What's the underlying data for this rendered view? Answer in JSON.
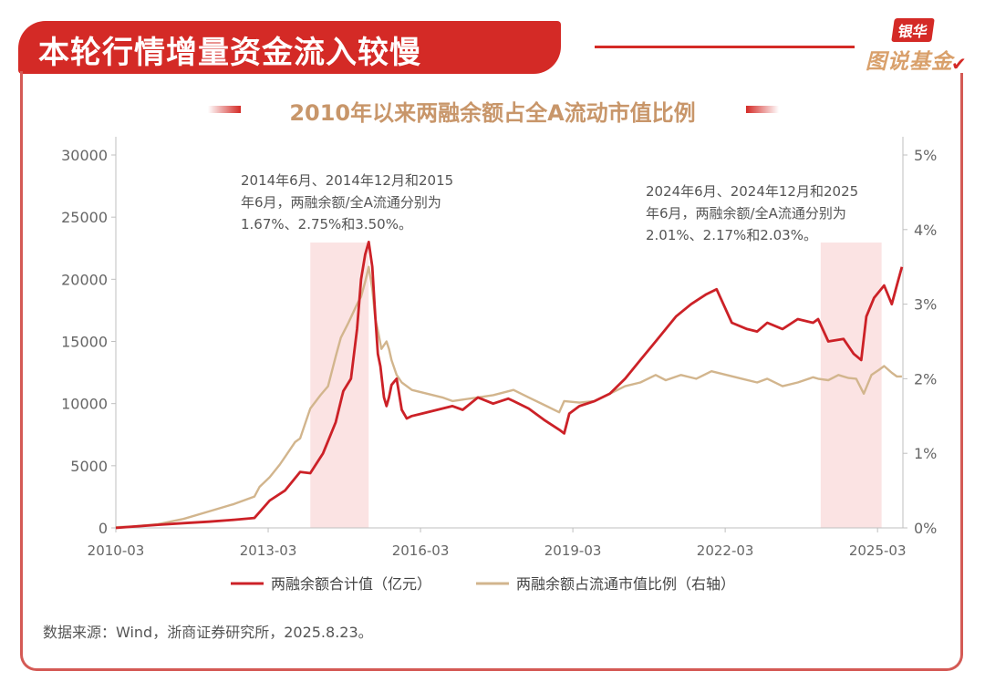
{
  "header": {
    "title": "本轮行情增量资金流入较慢",
    "brand_top": "银华",
    "brand_bottom": "图说基金",
    "brand_check": "✔"
  },
  "colors": {
    "accent_red": "#d42a26",
    "series_1": "#cc2127",
    "series_2": "#d2b58d",
    "highlight": "#fbe3e3"
  },
  "chart_data": {
    "type": "line",
    "title": "2010年以来两融余额占全A流动市值比例",
    "xlabel": "",
    "ylabel": "",
    "x_tick_labels": [
      "2010-03",
      "2013-03",
      "2016-03",
      "2019-03",
      "2022-03",
      "2025-03"
    ],
    "x_tick_values": [
      2010.17,
      2013.17,
      2016.17,
      2019.17,
      2022.17,
      2025.17
    ],
    "xlim": [
      2010.17,
      2025.67
    ],
    "y_left": {
      "ylim": [
        0,
        30000
      ],
      "tick_labels": [
        "0",
        "5000",
        "10000",
        "15000",
        "20000",
        "25000",
        "30000"
      ],
      "tick_values": [
        0,
        5000,
        10000,
        15000,
        20000,
        25000,
        30000
      ]
    },
    "y_right": {
      "ylim": [
        0,
        0.05
      ],
      "tick_labels": [
        "0%",
        "1%",
        "2%",
        "3%",
        "4%",
        "5%"
      ],
      "tick_values": [
        0,
        0.01,
        0.02,
        0.03,
        0.04,
        0.05
      ]
    },
    "shaded_ranges": [
      [
        2014.0,
        2015.15
      ],
      [
        2024.05,
        2025.25
      ]
    ],
    "annotations": [
      {
        "lines": [
          "2014年6月、2014年12月和2015",
          "年6月，两融余额/全A流通分别为",
          "1.67%、2.75%和3.50%。"
        ],
        "anchor": "left"
      },
      {
        "lines": [
          "2024年6月、2024年12月和2025",
          "年6月，两融余额/全A流通分别为",
          "2.01%、2.17%和2.03%。"
        ],
        "anchor": "right"
      }
    ],
    "series": [
      {
        "name": "两融余额合计值（亿元）",
        "axis": "left",
        "x": [
          2010.17,
          2010.5,
          2011.0,
          2011.5,
          2012.0,
          2012.5,
          2012.9,
          2013.2,
          2013.5,
          2013.8,
          2014.0,
          2014.25,
          2014.5,
          2014.65,
          2014.8,
          2014.92,
          2015.0,
          2015.08,
          2015.15,
          2015.22,
          2015.28,
          2015.33,
          2015.38,
          2015.45,
          2015.5,
          2015.55,
          2015.6,
          2015.7,
          2015.8,
          2015.9,
          2016.0,
          2016.2,
          2016.5,
          2016.8,
          2017.0,
          2017.3,
          2017.6,
          2017.9,
          2018.0,
          2018.3,
          2018.6,
          2018.9,
          2019.0,
          2019.1,
          2019.3,
          2019.6,
          2019.9,
          2020.2,
          2020.5,
          2020.8,
          2021.0,
          2021.2,
          2021.5,
          2021.8,
          2022.0,
          2022.3,
          2022.6,
          2022.8,
          2023.0,
          2023.3,
          2023.6,
          2023.9,
          2024.0,
          2024.2,
          2024.5,
          2024.7,
          2024.85,
          2024.95,
          2025.1,
          2025.3,
          2025.45,
          2025.55,
          2025.65
        ],
        "values": [
          0,
          100,
          250,
          380,
          500,
          650,
          800,
          2200,
          3000,
          4500,
          4400,
          6000,
          8500,
          11000,
          12000,
          16000,
          20000,
          22000,
          23000,
          21000,
          17000,
          14000,
          13000,
          10500,
          9800,
          10500,
          11500,
          12000,
          9500,
          8800,
          9000,
          9200,
          9500,
          9800,
          9500,
          10500,
          10000,
          10400,
          10200,
          9600,
          8700,
          7900,
          7600,
          9200,
          9800,
          10200,
          10800,
          12000,
          13500,
          15000,
          16000,
          17000,
          18000,
          18800,
          19200,
          16500,
          16000,
          15800,
          16500,
          16000,
          16800,
          16500,
          16800,
          15000,
          15200,
          14000,
          13500,
          17000,
          18500,
          19500,
          18000,
          19500,
          21000
        ]
      },
      {
        "name": "两融余额占流通市值比例（右轴）",
        "axis": "right",
        "x": [
          2010.17,
          2010.5,
          2011.0,
          2011.5,
          2012.0,
          2012.5,
          2012.9,
          2013.0,
          2013.2,
          2013.4,
          2013.5,
          2013.7,
          2013.8,
          2014.0,
          2014.2,
          2014.35,
          2014.5,
          2014.6,
          2014.75,
          2014.92,
          2015.0,
          2015.08,
          2015.15,
          2015.22,
          2015.28,
          2015.33,
          2015.4,
          2015.5,
          2015.55,
          2015.6,
          2015.7,
          2015.8,
          2016.0,
          2016.3,
          2016.6,
          2016.8,
          2017.0,
          2017.3,
          2017.6,
          2018.0,
          2018.3,
          2018.6,
          2018.9,
          2019.0,
          2019.3,
          2019.6,
          2019.9,
          2020.2,
          2020.5,
          2020.8,
          2021.0,
          2021.3,
          2021.6,
          2021.9,
          2022.2,
          2022.5,
          2022.8,
          2023.0,
          2023.3,
          2023.6,
          2023.9,
          2024.0,
          2024.2,
          2024.4,
          2024.6,
          2024.75,
          2024.9,
          2025.05,
          2025.2,
          2025.3,
          2025.45,
          2025.55,
          2025.65
        ],
        "values": [
          0.0001,
          0.0002,
          0.0005,
          0.0012,
          0.0022,
          0.0032,
          0.0042,
          0.0055,
          0.0068,
          0.0085,
          0.0095,
          0.0115,
          0.012,
          0.016,
          0.0178,
          0.019,
          0.023,
          0.0255,
          0.0275,
          0.03,
          0.031,
          0.033,
          0.035,
          0.032,
          0.028,
          0.0265,
          0.024,
          0.025,
          0.024,
          0.0225,
          0.0205,
          0.0195,
          0.0185,
          0.018,
          0.0175,
          0.017,
          0.0172,
          0.0175,
          0.0178,
          0.0185,
          0.0175,
          0.0165,
          0.0155,
          0.017,
          0.0168,
          0.017,
          0.018,
          0.019,
          0.0195,
          0.0205,
          0.0198,
          0.0205,
          0.02,
          0.021,
          0.0205,
          0.02,
          0.0195,
          0.02,
          0.019,
          0.0195,
          0.0202,
          0.02,
          0.0198,
          0.0205,
          0.0201,
          0.02,
          0.018,
          0.0205,
          0.0212,
          0.0217,
          0.0208,
          0.0203,
          0.0203
        ]
      }
    ],
    "legend_position": "bottom"
  },
  "footer": {
    "source": "数据来源：Wind，浙商证券研究所，2025.8.23。"
  }
}
